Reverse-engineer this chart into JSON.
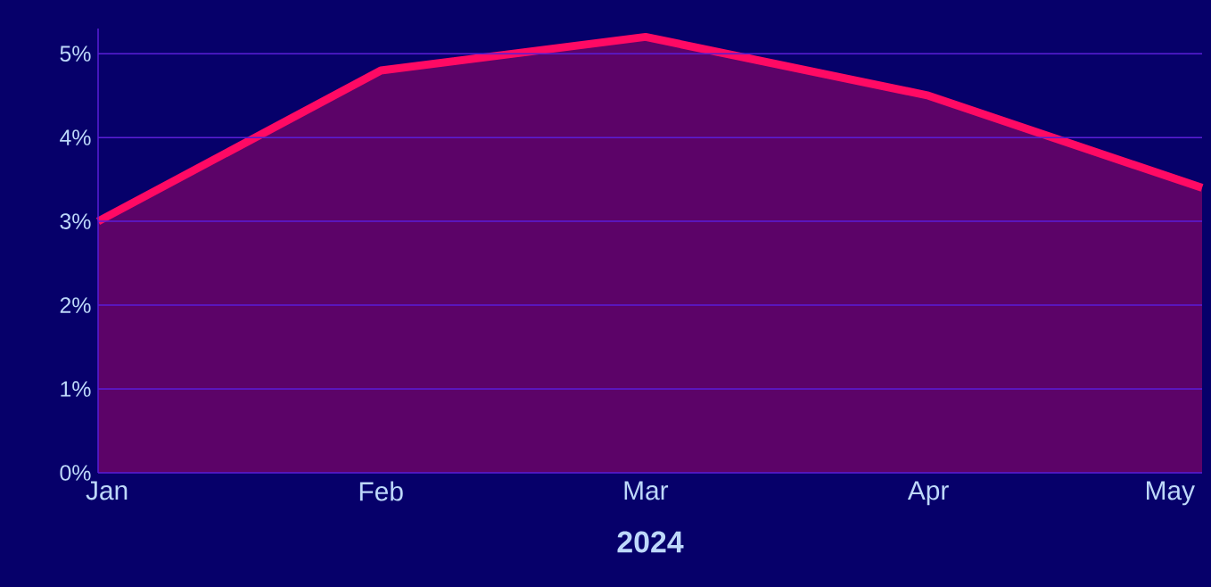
{
  "chart_data": {
    "type": "area",
    "x": [
      "2024-01",
      "2024-02",
      "2024-03",
      "2024-04",
      "2024-05"
    ],
    "series": [
      {
        "color": "#ff0a64",
        "values": [
          3.0,
          4.8,
          5.2,
          4.5,
          3.4
        ]
      }
    ],
    "xlim": [
      "2024-01",
      "2024-05"
    ],
    "xticks": [
      {
        "value": "2024-01",
        "label": "Jan"
      },
      {
        "value": "2024-02",
        "label": "Feb"
      },
      {
        "value": "2024-03",
        "label": "Mar"
      },
      {
        "value": "2024-04",
        "label": "Apr"
      },
      {
        "value": "2024-05",
        "label": "May"
      }
    ],
    "ylim": [
      0,
      5.3
    ],
    "yticks": [
      {
        "value": 0,
        "label": "0%"
      },
      {
        "value": 1,
        "label": "1%"
      },
      {
        "value": 2,
        "label": "2%"
      },
      {
        "value": 3,
        "label": "3%"
      },
      {
        "value": 4,
        "label": "4%"
      },
      {
        "value": 5,
        "label": "5%"
      }
    ],
    "grid": "y",
    "marker": "none",
    "line_style": "solid",
    "annotations": [
      "2024"
    ]
  }
}
